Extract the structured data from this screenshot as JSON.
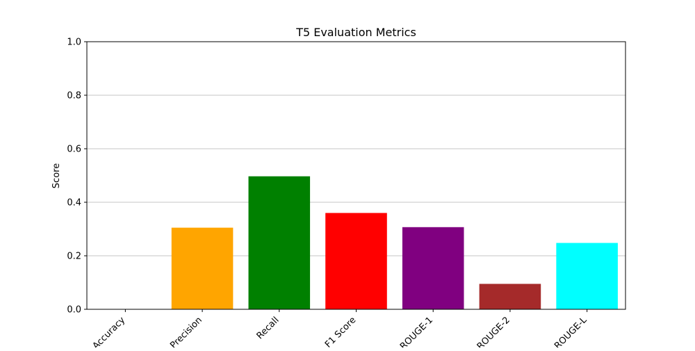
{
  "chart_data": {
    "type": "bar",
    "title": "T5 Evaluation Metrics",
    "xlabel": "",
    "ylabel": "Score",
    "ylim": [
      0,
      1.0
    ],
    "yticks": [
      "0.0",
      "0.2",
      "0.4",
      "0.6",
      "0.8",
      "1.0"
    ],
    "grid": "y",
    "categories": [
      "Accuracy",
      "Precision",
      "Recall",
      "F1 Score",
      "ROUGE-1",
      "ROUGE-2",
      "ROUGE-L"
    ],
    "values": [
      0.0,
      0.305,
      0.497,
      0.36,
      0.307,
      0.095,
      0.248
    ],
    "colors": [
      "#1f77b4",
      "#ffa500",
      "#008000",
      "#ff0000",
      "#800080",
      "#a52a2a",
      "#00ffff"
    ]
  }
}
